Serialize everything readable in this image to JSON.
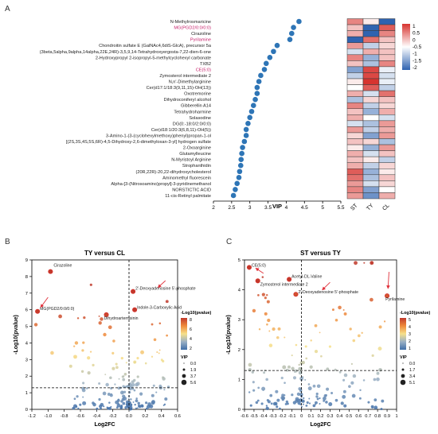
{
  "panels": {
    "a": "A",
    "b": "B",
    "c": "C"
  },
  "colors": {
    "dot_blue": "#2e75b6",
    "highlight_label": "#c7206b",
    "heat_pos": "#d7342f",
    "heat_mid": "#ffffff",
    "heat_neg": "#2f63b0",
    "dash": "#000000",
    "arrow": "#e0303a",
    "circle_outline": "#d7342f"
  },
  "chart_data": [
    {
      "type": "scatter",
      "id": "vip",
      "xlabel": "VIP",
      "xlim": [
        2,
        5.5
      ],
      "xticks": [
        "2",
        "2.5",
        "3",
        "3.5",
        "4",
        "4.5",
        "5",
        "5.5"
      ],
      "labels": [
        "N-Methylrosmaricine",
        "MG(PGD2/0:0/0:0)",
        "Cirazoline",
        "Pyrilamine",
        "Chondroitin sulfate E (GalNAc4,6diS-GlcA), precursor 5a",
        "(3beta,5alpha,9alpha,14alpha,22E,24R)-3,5,9,14-Tetrahydroxyergosta-7,22-dien-6-one",
        "2-Hydroxypropyl 2-isopropyl-5-methylcyclohexyl carbonate",
        "TXB2",
        "CE(5:0)",
        "Zymosterol intermediate 2",
        "N,n'-Dimethylarginine",
        "Cer(d17:1/18:3(9,11,15)-OH(13))",
        "Oxotremorine",
        "Dihydroconiferyl alcohol",
        "Gibberellin A14",
        "Tetrahydroharmine",
        "Solasodine",
        "DG(0:-18:0/2:0/0:0)",
        "Cer(d18:1/20:3(6,8,11)-OH(5))",
        "3-Amino-1-(3-(cyclohexylmethoxy)phenyl)propan-1-ol",
        "[(2S,3S,4S,5S,6R)-4,5-Dihydroxy-2,6-dimethyloxan-3-yl] hydrogen sulfate",
        "2-Oxoarginine",
        "Glutamylleucine",
        "N-Myristoyl Arginine",
        "Strophanthidin",
        "(20R,22R)-20,22-dihydroxycholesterol",
        "Aminomethyl fluorescein",
        "Alpha-[3-(Nitrosoamino)propyl]-3-pyridinemethanol",
        "NORSTICTIC ACID",
        "11-cis-Retinyl palmitate"
      ],
      "highlighted": [
        "MG(PGD2/0:0/0:0)",
        "Pyrilamine",
        "CE(5:0)"
      ],
      "values": [
        4.35,
        4.2,
        4.15,
        4.1,
        3.75,
        3.65,
        3.55,
        3.45,
        3.4,
        3.3,
        3.25,
        3.2,
        3.2,
        3.15,
        3.1,
        3.05,
        3.0,
        2.95,
        2.9,
        2.9,
        2.85,
        2.8,
        2.78,
        2.76,
        2.75,
        2.72,
        2.7,
        2.65,
        2.6,
        2.55
      ]
    },
    {
      "type": "heatmap",
      "id": "heat",
      "columns": [
        "ST",
        "TY",
        "CL"
      ],
      "legend_ticks": [
        "1",
        "0.5",
        "0",
        "-0.5",
        "-1",
        "-1.5",
        "-2"
      ],
      "matrix": [
        [
          0.6,
          0.1,
          -1.0
        ],
        [
          0.3,
          -1.6,
          0.8
        ],
        [
          0.4,
          -1.2,
          0.6
        ],
        [
          -1.3,
          0.7,
          0.3
        ],
        [
          0.5,
          -0.3,
          0.2
        ],
        [
          -0.2,
          0.4,
          0.3
        ],
        [
          0.6,
          -0.5,
          0.3
        ],
        [
          0.3,
          -0.4,
          0.6
        ],
        [
          -0.6,
          0.9,
          -0.1
        ],
        [
          -0.3,
          0.9,
          -0.2
        ],
        [
          0.1,
          1.0,
          -0.1
        ],
        [
          0.0,
          0.8,
          -0.3
        ],
        [
          0.4,
          -0.2,
          0.7
        ],
        [
          -0.4,
          0.2,
          0.3
        ],
        [
          0.6,
          -0.3,
          0.2
        ],
        [
          0.3,
          -0.5,
          0.4
        ],
        [
          0.4,
          0.0,
          -0.2
        ],
        [
          -0.2,
          -0.4,
          0.5
        ],
        [
          0.5,
          -0.3,
          0.4
        ],
        [
          0.2,
          -0.6,
          0.5
        ],
        [
          0.3,
          0.2,
          -0.4
        ],
        [
          0.1,
          -0.5,
          0.5
        ],
        [
          0.4,
          -0.2,
          0.3
        ],
        [
          0.3,
          0.1,
          -0.3
        ],
        [
          0.4,
          -0.3,
          0.2
        ],
        [
          0.8,
          -0.5,
          0.1
        ],
        [
          0.7,
          -0.4,
          0.3
        ],
        [
          0.5,
          -0.2,
          0.2
        ],
        [
          0.6,
          -0.6,
          0.0
        ],
        [
          0.5,
          -0.7,
          0.4
        ]
      ]
    },
    {
      "type": "scatter",
      "id": "volB",
      "title": "TY versus CL",
      "xlabel": "Log2FC",
      "ylabel": "-Log10(pvalue)",
      "xlim": [
        -1.2,
        0.6
      ],
      "ylim": [
        0,
        9
      ],
      "xticks": [
        "-1.2",
        "-1.0",
        "-0.8",
        "-0.6",
        "-0.4",
        "-0.2",
        "0.0",
        "0.2",
        "0.4",
        "0.6"
      ],
      "yticks": [
        "0",
        "1",
        "2",
        "3",
        "4",
        "5",
        "6",
        "7",
        "8",
        "9"
      ],
      "legend_title": "-Log10(pvalue)",
      "legend_ticks": [
        "8",
        "6",
        "4",
        "2"
      ],
      "vip_title": "VIP",
      "vip_ticks": [
        "0.0",
        "1.9",
        "3.7",
        "5.6"
      ],
      "annotations": [
        {
          "label": "Cirazoline",
          "x": -0.97,
          "y": 8.3
        },
        {
          "label": "2'-Deoxyadenosine 5'-phosphate",
          "x": 0.05,
          "y": 7.1
        },
        {
          "label": "MG(PGD2/0:0/0:0)",
          "x": -1.13,
          "y": 5.9
        },
        {
          "label": "Dihydroartemisinin",
          "x": -0.28,
          "y": 5.7
        },
        {
          "label": "Indole-3-Carboxylic Acid",
          "x": 0.07,
          "y": 6.0
        }
      ],
      "hline": 1.3,
      "vline": 0
    },
    {
      "type": "scatter",
      "id": "volC",
      "title": "ST versus TY",
      "xlabel": "Log2FC",
      "ylabel": "-Log10(pvalue)",
      "xlim": [
        -0.6,
        1.0
      ],
      "ylim": [
        0,
        5
      ],
      "xticks": [
        "-0.6",
        "-0.5",
        "-0.4",
        "-0.3",
        "-0.2",
        "-0.1",
        "0",
        "0.1",
        "0.2",
        "0.3",
        "0.4",
        "0.5",
        "0.6",
        "0.7",
        "0.8",
        "0.9",
        "1"
      ],
      "yticks": [
        "0",
        "1",
        "2",
        "3",
        "4",
        "5"
      ],
      "legend_title": "-Log10(pvalue)",
      "legend_ticks": [
        "5",
        "4",
        "3",
        "2",
        "1"
      ],
      "vip_title": "VIP",
      "vip_ticks": [
        "0.0",
        "1.7",
        "3.4",
        "5.1"
      ],
      "annotations": [
        {
          "label": "CE(5:0)",
          "x": -0.55,
          "y": 4.75
        },
        {
          "label": "Acetyl-DL-Valine",
          "x": -0.13,
          "y": 4.35
        },
        {
          "label": "Zymosterol intermediate 2",
          "x": -0.46,
          "y": 4.3
        },
        {
          "label": "2'-Deoxyadenosine 5'-phosphate",
          "x": -0.06,
          "y": 3.85
        },
        {
          "label": "Pyrilamine",
          "x": 0.9,
          "y": 3.8
        }
      ],
      "hline": 1.3,
      "vline": 0
    }
  ]
}
